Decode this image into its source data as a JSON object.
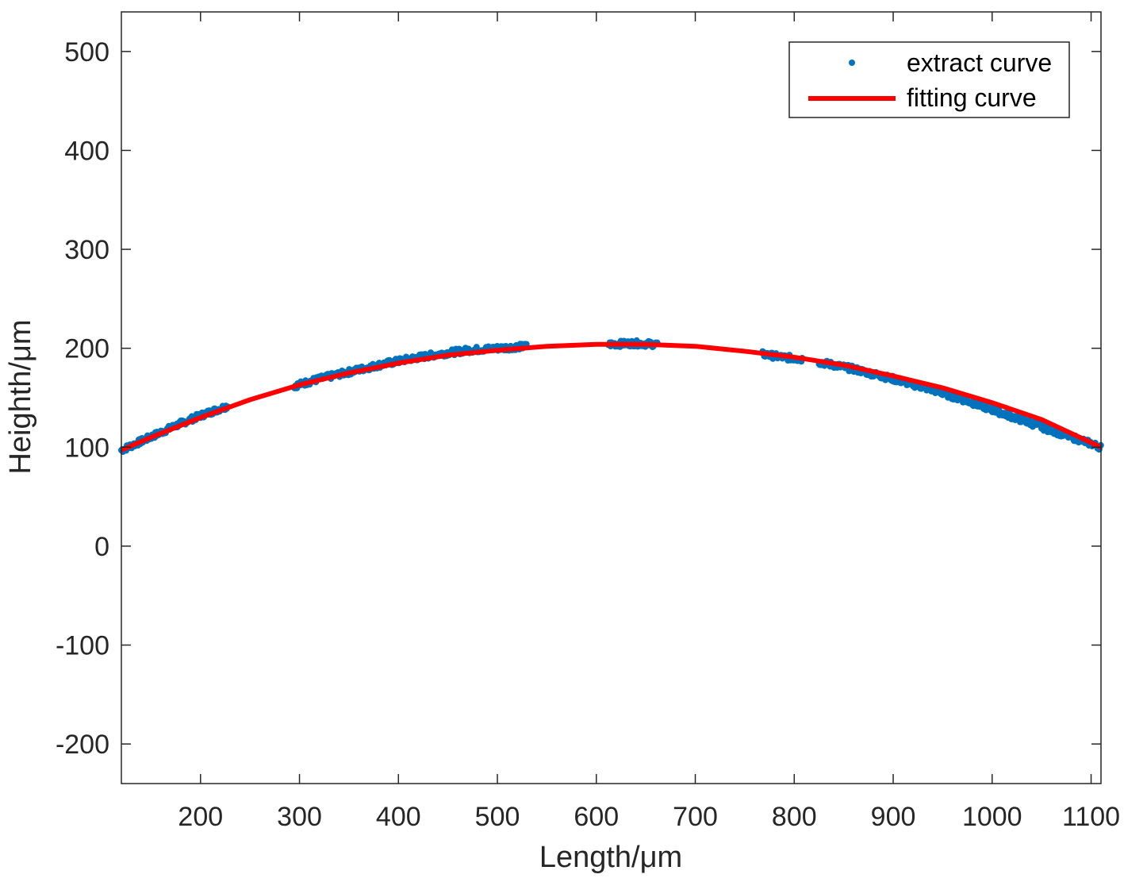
{
  "chart_data": {
    "type": "scatter",
    "xlabel": "Length/μm",
    "ylabel": "Heighth/μm",
    "xlim": [
      120,
      1110
    ],
    "ylim": [
      -240,
      540
    ],
    "xticks": [
      200,
      300,
      400,
      500,
      600,
      700,
      800,
      900,
      1000,
      1100
    ],
    "yticks": [
      -200,
      -100,
      0,
      100,
      200,
      300,
      400,
      500
    ],
    "grid": false,
    "legend": {
      "placement": "top-right",
      "entries": [
        "extract curve",
        "fitting curve"
      ]
    },
    "series": [
      {
        "name": "extract curve",
        "kind": "scatter",
        "color": "#0072BD",
        "segments": [
          [
            120,
            228
          ],
          [
            295,
            530
          ],
          [
            612,
            662
          ],
          [
            768,
            808
          ],
          [
            825,
            1110
          ]
        ],
        "x": [
          120,
          140,
          160,
          180,
          200,
          220,
          228,
          295,
          320,
          350,
          380,
          410,
          440,
          470,
          500,
          530,
          612,
          637,
          662,
          768,
          788,
          808,
          825,
          860,
          900,
          940,
          980,
          1020,
          1060,
          1090,
          1110
        ],
        "y": [
          97,
          106,
          115,
          124,
          132,
          139,
          142,
          162,
          169,
          176,
          183,
          189,
          194,
          198,
          200,
          202,
          204,
          205,
          204,
          194,
          191,
          189,
          186,
          179,
          169,
          158,
          145,
          131,
          117,
          107,
          100
        ]
      },
      {
        "name": "fitting curve",
        "kind": "line",
        "color": "#FF0000",
        "x": [
          120,
          150,
          200,
          250,
          300,
          350,
          400,
          450,
          500,
          550,
          600,
          650,
          700,
          750,
          800,
          850,
          900,
          950,
          1000,
          1050,
          1110
        ],
        "y": [
          97,
          110,
          130,
          148,
          163,
          175,
          185,
          193,
          198,
          202,
          204,
          204,
          202,
          197,
          191,
          183,
          172,
          160,
          145,
          128,
          100
        ]
      }
    ]
  }
}
